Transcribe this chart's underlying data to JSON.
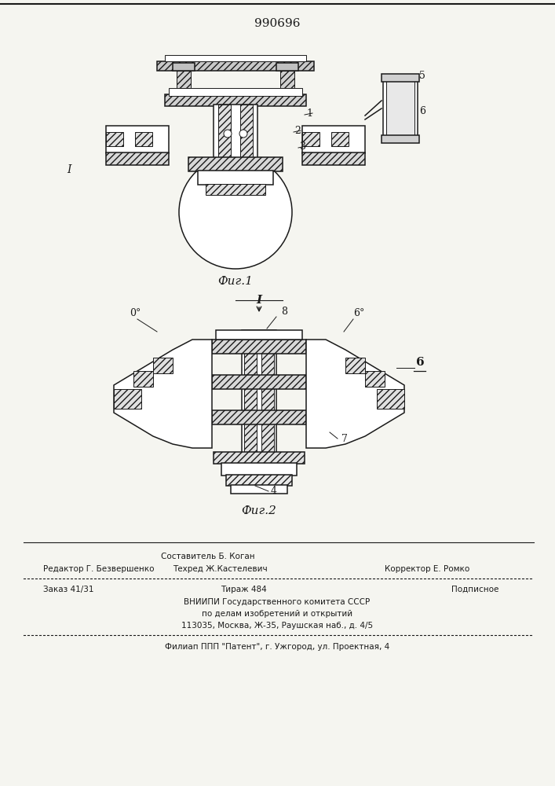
{
  "patent_number": "990696",
  "fig1_label": "Фиг.1",
  "fig2_label": "Фиг.2",
  "editor_line": "Редактор Г. Безвершенко",
  "composer_line": "Составитель Б. Коган",
  "techred_line": "Техред Ж.Кастелевич",
  "corrector_line": "Корректор Е. Ромко",
  "order_line": "Заказ 41/31",
  "tirazh_line": "Тираж 484",
  "podpisnoe_line": "Подписное",
  "vniiipi_line1": "ВНИИПИ Государственного комитета СССР",
  "vniiipi_line2": "по делам изобретений и открытий",
  "vniiipi_line3": "113035, Москва, Ж-35, Раушская наб., д. 4/5",
  "filial_line": "Филиап ППП \"Патент\", г. Ужгород, ул. Проектная, 4",
  "bg_color": "#f5f5f0",
  "line_color": "#1a1a1a",
  "label_0deg": "0°",
  "label_6deg": "6°"
}
